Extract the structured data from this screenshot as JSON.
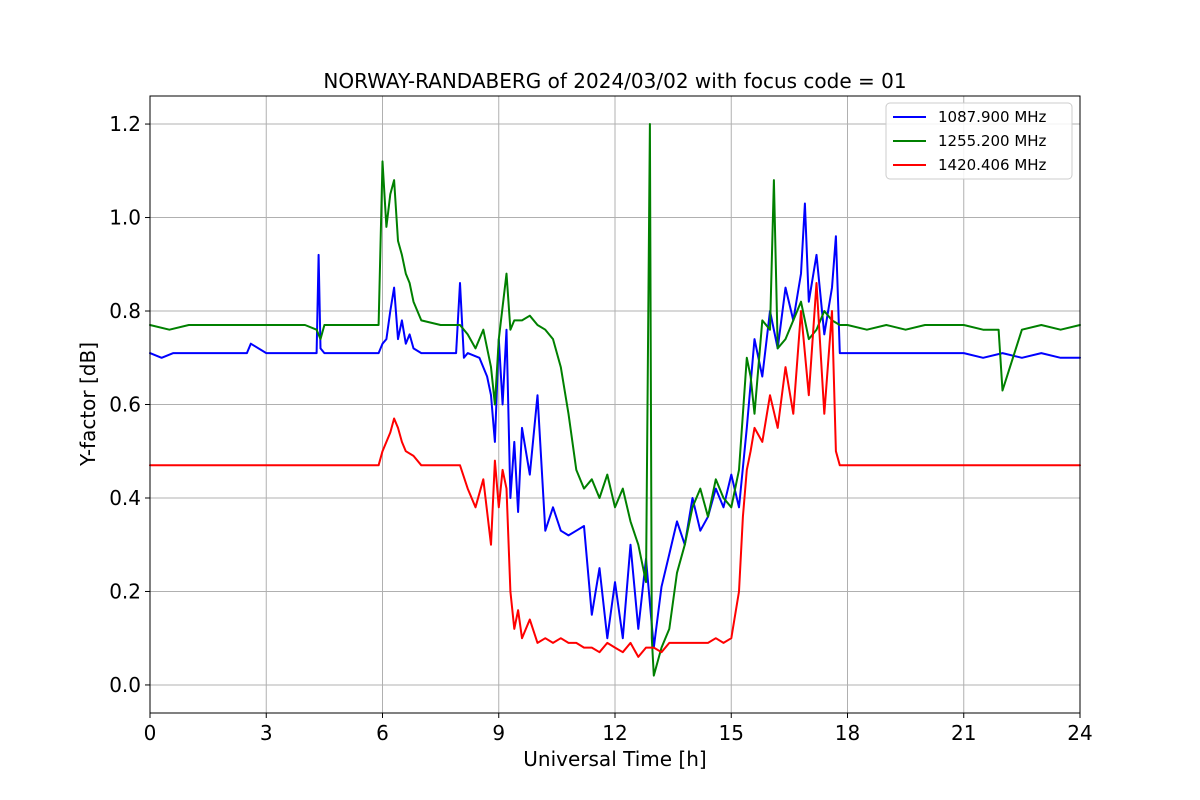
{
  "chart_data": {
    "type": "line",
    "title": "NORWAY-RANDABERG of 2024/03/02 with focus code = 01",
    "xlabel": "Universal Time [h]",
    "ylabel": "Y-factor [dB]",
    "xlim": [
      0,
      24
    ],
    "ylim": [
      -0.06,
      1.26
    ],
    "xticks": [
      0,
      3,
      6,
      9,
      12,
      15,
      18,
      21,
      24
    ],
    "yticks": [
      0.0,
      0.2,
      0.4,
      0.6,
      0.8,
      1.0,
      1.2
    ],
    "ytick_labels": [
      "0.0",
      "0.2",
      "0.4",
      "0.6",
      "0.8",
      "1.0",
      "1.2"
    ],
    "grid": true,
    "legend_position": "top-right",
    "series": [
      {
        "name": "1087.900 MHz",
        "color": "#0000ff",
        "x": [
          0,
          0.3,
          0.6,
          1.0,
          1.5,
          2.0,
          2.5,
          2.6,
          3.0,
          3.5,
          4.0,
          4.3,
          4.35,
          4.4,
          4.5,
          5.0,
          5.5,
          5.9,
          6.0,
          6.1,
          6.2,
          6.3,
          6.4,
          6.5,
          6.6,
          6.7,
          6.8,
          7.0,
          7.5,
          7.9,
          8.0,
          8.1,
          8.2,
          8.5,
          8.7,
          8.8,
          8.9,
          9.0,
          9.1,
          9.2,
          9.3,
          9.4,
          9.5,
          9.6,
          9.8,
          10.0,
          10.2,
          10.4,
          10.6,
          10.8,
          11.0,
          11.2,
          11.4,
          11.6,
          11.8,
          12.0,
          12.2,
          12.4,
          12.6,
          12.8,
          13.0,
          13.2,
          13.4,
          13.6,
          13.8,
          14.0,
          14.2,
          14.4,
          14.6,
          14.8,
          15.0,
          15.2,
          15.4,
          15.6,
          15.8,
          16.0,
          16.2,
          16.4,
          16.6,
          16.8,
          16.9,
          17.0,
          17.2,
          17.4,
          17.6,
          17.7,
          17.8,
          18.0,
          19.0,
          20.0,
          21.0,
          21.5,
          22.0,
          22.5,
          23.0,
          23.5,
          24.0
        ],
        "y": [
          0.71,
          0.7,
          0.71,
          0.71,
          0.71,
          0.71,
          0.71,
          0.73,
          0.71,
          0.71,
          0.71,
          0.71,
          0.92,
          0.72,
          0.71,
          0.71,
          0.71,
          0.71,
          0.73,
          0.74,
          0.8,
          0.85,
          0.74,
          0.78,
          0.73,
          0.75,
          0.72,
          0.71,
          0.71,
          0.71,
          0.86,
          0.7,
          0.71,
          0.7,
          0.66,
          0.62,
          0.52,
          0.74,
          0.6,
          0.76,
          0.4,
          0.52,
          0.37,
          0.55,
          0.45,
          0.62,
          0.33,
          0.38,
          0.33,
          0.32,
          0.33,
          0.34,
          0.15,
          0.25,
          0.1,
          0.22,
          0.1,
          0.3,
          0.12,
          0.27,
          0.08,
          0.21,
          0.28,
          0.35,
          0.3,
          0.4,
          0.33,
          0.36,
          0.42,
          0.38,
          0.45,
          0.38,
          0.55,
          0.74,
          0.66,
          0.8,
          0.72,
          0.85,
          0.78,
          0.88,
          1.03,
          0.82,
          0.92,
          0.75,
          0.85,
          0.96,
          0.71,
          0.71,
          0.71,
          0.71,
          0.71,
          0.7,
          0.71,
          0.7,
          0.71,
          0.7,
          0.7
        ]
      },
      {
        "name": "1255.200 MHz",
        "color": "#008000",
        "x": [
          0,
          0.5,
          1.0,
          1.5,
          2.0,
          2.5,
          3.0,
          3.5,
          4.0,
          4.3,
          4.4,
          4.5,
          5.0,
          5.5,
          5.9,
          6.0,
          6.1,
          6.2,
          6.3,
          6.4,
          6.5,
          6.6,
          6.7,
          6.8,
          7.0,
          7.5,
          8.0,
          8.2,
          8.4,
          8.6,
          8.8,
          8.9,
          9.0,
          9.2,
          9.3,
          9.4,
          9.6,
          9.8,
          10.0,
          10.2,
          10.4,
          10.6,
          10.8,
          11.0,
          11.2,
          11.4,
          11.6,
          11.8,
          12.0,
          12.2,
          12.4,
          12.6,
          12.8,
          12.9,
          12.95,
          13.0,
          13.2,
          13.4,
          13.6,
          13.8,
          14.0,
          14.2,
          14.4,
          14.6,
          14.8,
          15.0,
          15.2,
          15.4,
          15.5,
          15.6,
          15.8,
          16.0,
          16.1,
          16.2,
          16.4,
          16.6,
          16.8,
          17.0,
          17.2,
          17.4,
          17.6,
          17.8,
          18.0,
          18.5,
          19.0,
          19.5,
          20.0,
          20.5,
          21.0,
          21.5,
          21.9,
          22.0,
          22.5,
          23.0,
          23.5,
          24.0
        ],
        "y": [
          0.77,
          0.76,
          0.77,
          0.77,
          0.77,
          0.77,
          0.77,
          0.77,
          0.77,
          0.76,
          0.74,
          0.77,
          0.77,
          0.77,
          0.77,
          1.12,
          0.98,
          1.05,
          1.08,
          0.95,
          0.92,
          0.88,
          0.86,
          0.82,
          0.78,
          0.77,
          0.77,
          0.75,
          0.72,
          0.76,
          0.68,
          0.6,
          0.74,
          0.88,
          0.76,
          0.78,
          0.78,
          0.79,
          0.77,
          0.76,
          0.74,
          0.68,
          0.58,
          0.46,
          0.42,
          0.44,
          0.4,
          0.45,
          0.38,
          0.42,
          0.35,
          0.3,
          0.22,
          1.2,
          0.1,
          0.02,
          0.08,
          0.12,
          0.24,
          0.3,
          0.38,
          0.42,
          0.36,
          0.44,
          0.4,
          0.38,
          0.46,
          0.7,
          0.66,
          0.58,
          0.78,
          0.76,
          1.08,
          0.72,
          0.74,
          0.78,
          0.82,
          0.74,
          0.76,
          0.8,
          0.78,
          0.77,
          0.77,
          0.76,
          0.77,
          0.76,
          0.77,
          0.77,
          0.77,
          0.76,
          0.76,
          0.63,
          0.76,
          0.77,
          0.76,
          0.77
        ]
      },
      {
        "name": "1420.406 MHz",
        "color": "#ff0000",
        "x": [
          0,
          0.5,
          1.0,
          2.0,
          3.0,
          4.0,
          5.0,
          5.9,
          6.0,
          6.2,
          6.3,
          6.4,
          6.5,
          6.6,
          6.8,
          7.0,
          7.5,
          8.0,
          8.2,
          8.4,
          8.6,
          8.8,
          8.9,
          9.0,
          9.1,
          9.2,
          9.3,
          9.4,
          9.5,
          9.6,
          9.8,
          10.0,
          10.2,
          10.4,
          10.6,
          10.8,
          11.0,
          11.2,
          11.4,
          11.6,
          11.8,
          12.0,
          12.2,
          12.4,
          12.6,
          12.8,
          13.0,
          13.2,
          13.4,
          13.6,
          13.8,
          14.0,
          14.2,
          14.4,
          14.6,
          14.8,
          15.0,
          15.2,
          15.3,
          15.4,
          15.5,
          15.6,
          15.8,
          16.0,
          16.2,
          16.4,
          16.6,
          16.8,
          17.0,
          17.2,
          17.4,
          17.6,
          17.7,
          17.8,
          18.0,
          19.0,
          20.0,
          21.0,
          22.0,
          23.0,
          24.0
        ],
        "y": [
          0.47,
          0.47,
          0.47,
          0.47,
          0.47,
          0.47,
          0.47,
          0.47,
          0.5,
          0.54,
          0.57,
          0.55,
          0.52,
          0.5,
          0.49,
          0.47,
          0.47,
          0.47,
          0.42,
          0.38,
          0.44,
          0.3,
          0.48,
          0.38,
          0.46,
          0.42,
          0.2,
          0.12,
          0.16,
          0.1,
          0.14,
          0.09,
          0.1,
          0.09,
          0.1,
          0.09,
          0.09,
          0.08,
          0.08,
          0.07,
          0.09,
          0.08,
          0.07,
          0.09,
          0.06,
          0.08,
          0.08,
          0.07,
          0.09,
          0.09,
          0.09,
          0.09,
          0.09,
          0.09,
          0.1,
          0.09,
          0.1,
          0.2,
          0.36,
          0.46,
          0.5,
          0.55,
          0.52,
          0.62,
          0.55,
          0.68,
          0.58,
          0.8,
          0.62,
          0.86,
          0.58,
          0.8,
          0.5,
          0.47,
          0.47,
          0.47,
          0.47,
          0.47,
          0.47,
          0.47,
          0.47
        ]
      }
    ]
  }
}
